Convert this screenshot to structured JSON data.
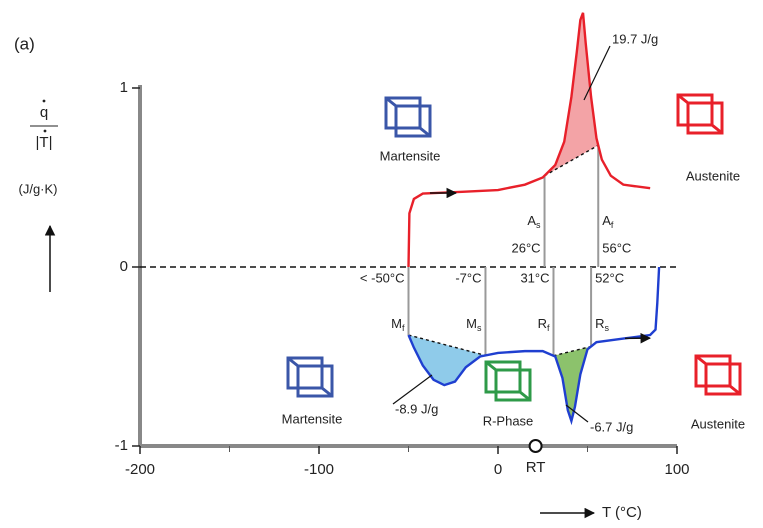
{
  "chart_data": {
    "type": "line",
    "panel_label": "(a)",
    "ylabel": {
      "numerator": "q",
      "denominator": "|T|",
      "unit": "(J/g·K)"
    },
    "xlabel": "T (°C)",
    "xlim": [
      -200,
      100
    ],
    "xticks": [
      -200,
      -100,
      0,
      100
    ],
    "ylim": [
      -1,
      1
    ],
    "yticks": [
      -1,
      0,
      1
    ],
    "zero_line": true,
    "series": [
      {
        "color": "#e8202a",
        "x": [
          -50,
          -49.5,
          -47,
          -42,
          -20,
          0,
          15,
          25,
          32,
          37,
          41,
          44,
          46,
          47.5,
          49,
          52,
          55,
          58,
          63,
          70,
          85
        ],
        "values": [
          0,
          0.3,
          0.38,
          0.41,
          0.42,
          0.43,
          0.46,
          0.5,
          0.57,
          0.7,
          0.95,
          1.2,
          1.38,
          1.42,
          1.25,
          0.95,
          0.72,
          0.6,
          0.51,
          0.46,
          0.44
        ],
        "transitions": [
          {
            "symbol": "A",
            "sub": "s",
            "label": "26°C",
            "value": 26
          },
          {
            "symbol": "A",
            "sub": "f",
            "label": "56°C",
            "value": 56
          }
        ],
        "peaks": [
          {
            "label": "19.7 J/g",
            "value": 19.7,
            "from": 26,
            "to": 56,
            "color": "#f3a3a6"
          }
        ]
      },
      {
        "color": "#1f3fd0",
        "x": [
          -50,
          -47,
          -42,
          -36,
          -30,
          -24,
          -18,
          -10,
          0,
          15,
          25,
          32,
          36,
          39,
          41,
          43,
          46,
          50,
          55,
          70,
          85,
          88,
          89,
          90
        ],
        "values": [
          -0.38,
          -0.45,
          -0.55,
          -0.63,
          -0.66,
          -0.64,
          -0.56,
          -0.5,
          -0.48,
          -0.47,
          -0.47,
          -0.5,
          -0.62,
          -0.8,
          -0.86,
          -0.78,
          -0.6,
          -0.46,
          -0.42,
          -0.4,
          -0.38,
          -0.35,
          -0.2,
          0
        ],
        "transitions": [
          {
            "symbol": "M",
            "sub": "f",
            "label": "< -50°C",
            "value": -50
          },
          {
            "symbol": "M",
            "sub": "s",
            "label": "-7°C",
            "value": -7
          },
          {
            "symbol": "R",
            "sub": "f",
            "label": "31°C",
            "value": 31
          },
          {
            "symbol": "R",
            "sub": "s",
            "label": "52°C",
            "value": 52
          }
        ],
        "peaks": [
          {
            "label": "-8.9 J/g",
            "value": -8.9,
            "from": -50,
            "to": -7,
            "color": "#8fcbea"
          },
          {
            "label": "-6.7 J/g",
            "value": -6.7,
            "from": 31,
            "to": 52,
            "color": "#8cc26c"
          }
        ]
      }
    ],
    "phases": [
      {
        "label": "Martensite",
        "color": "#3a56a8"
      },
      {
        "label": "Austenite",
        "color": "#e8202a"
      },
      {
        "label": "Martensite",
        "color": "#3a56a8"
      },
      {
        "label": "R-Phase",
        "color": "#2e9a48"
      },
      {
        "label": "Austenite",
        "color": "#e8202a"
      }
    ],
    "marker": {
      "label": "RT",
      "value": 21
    }
  }
}
